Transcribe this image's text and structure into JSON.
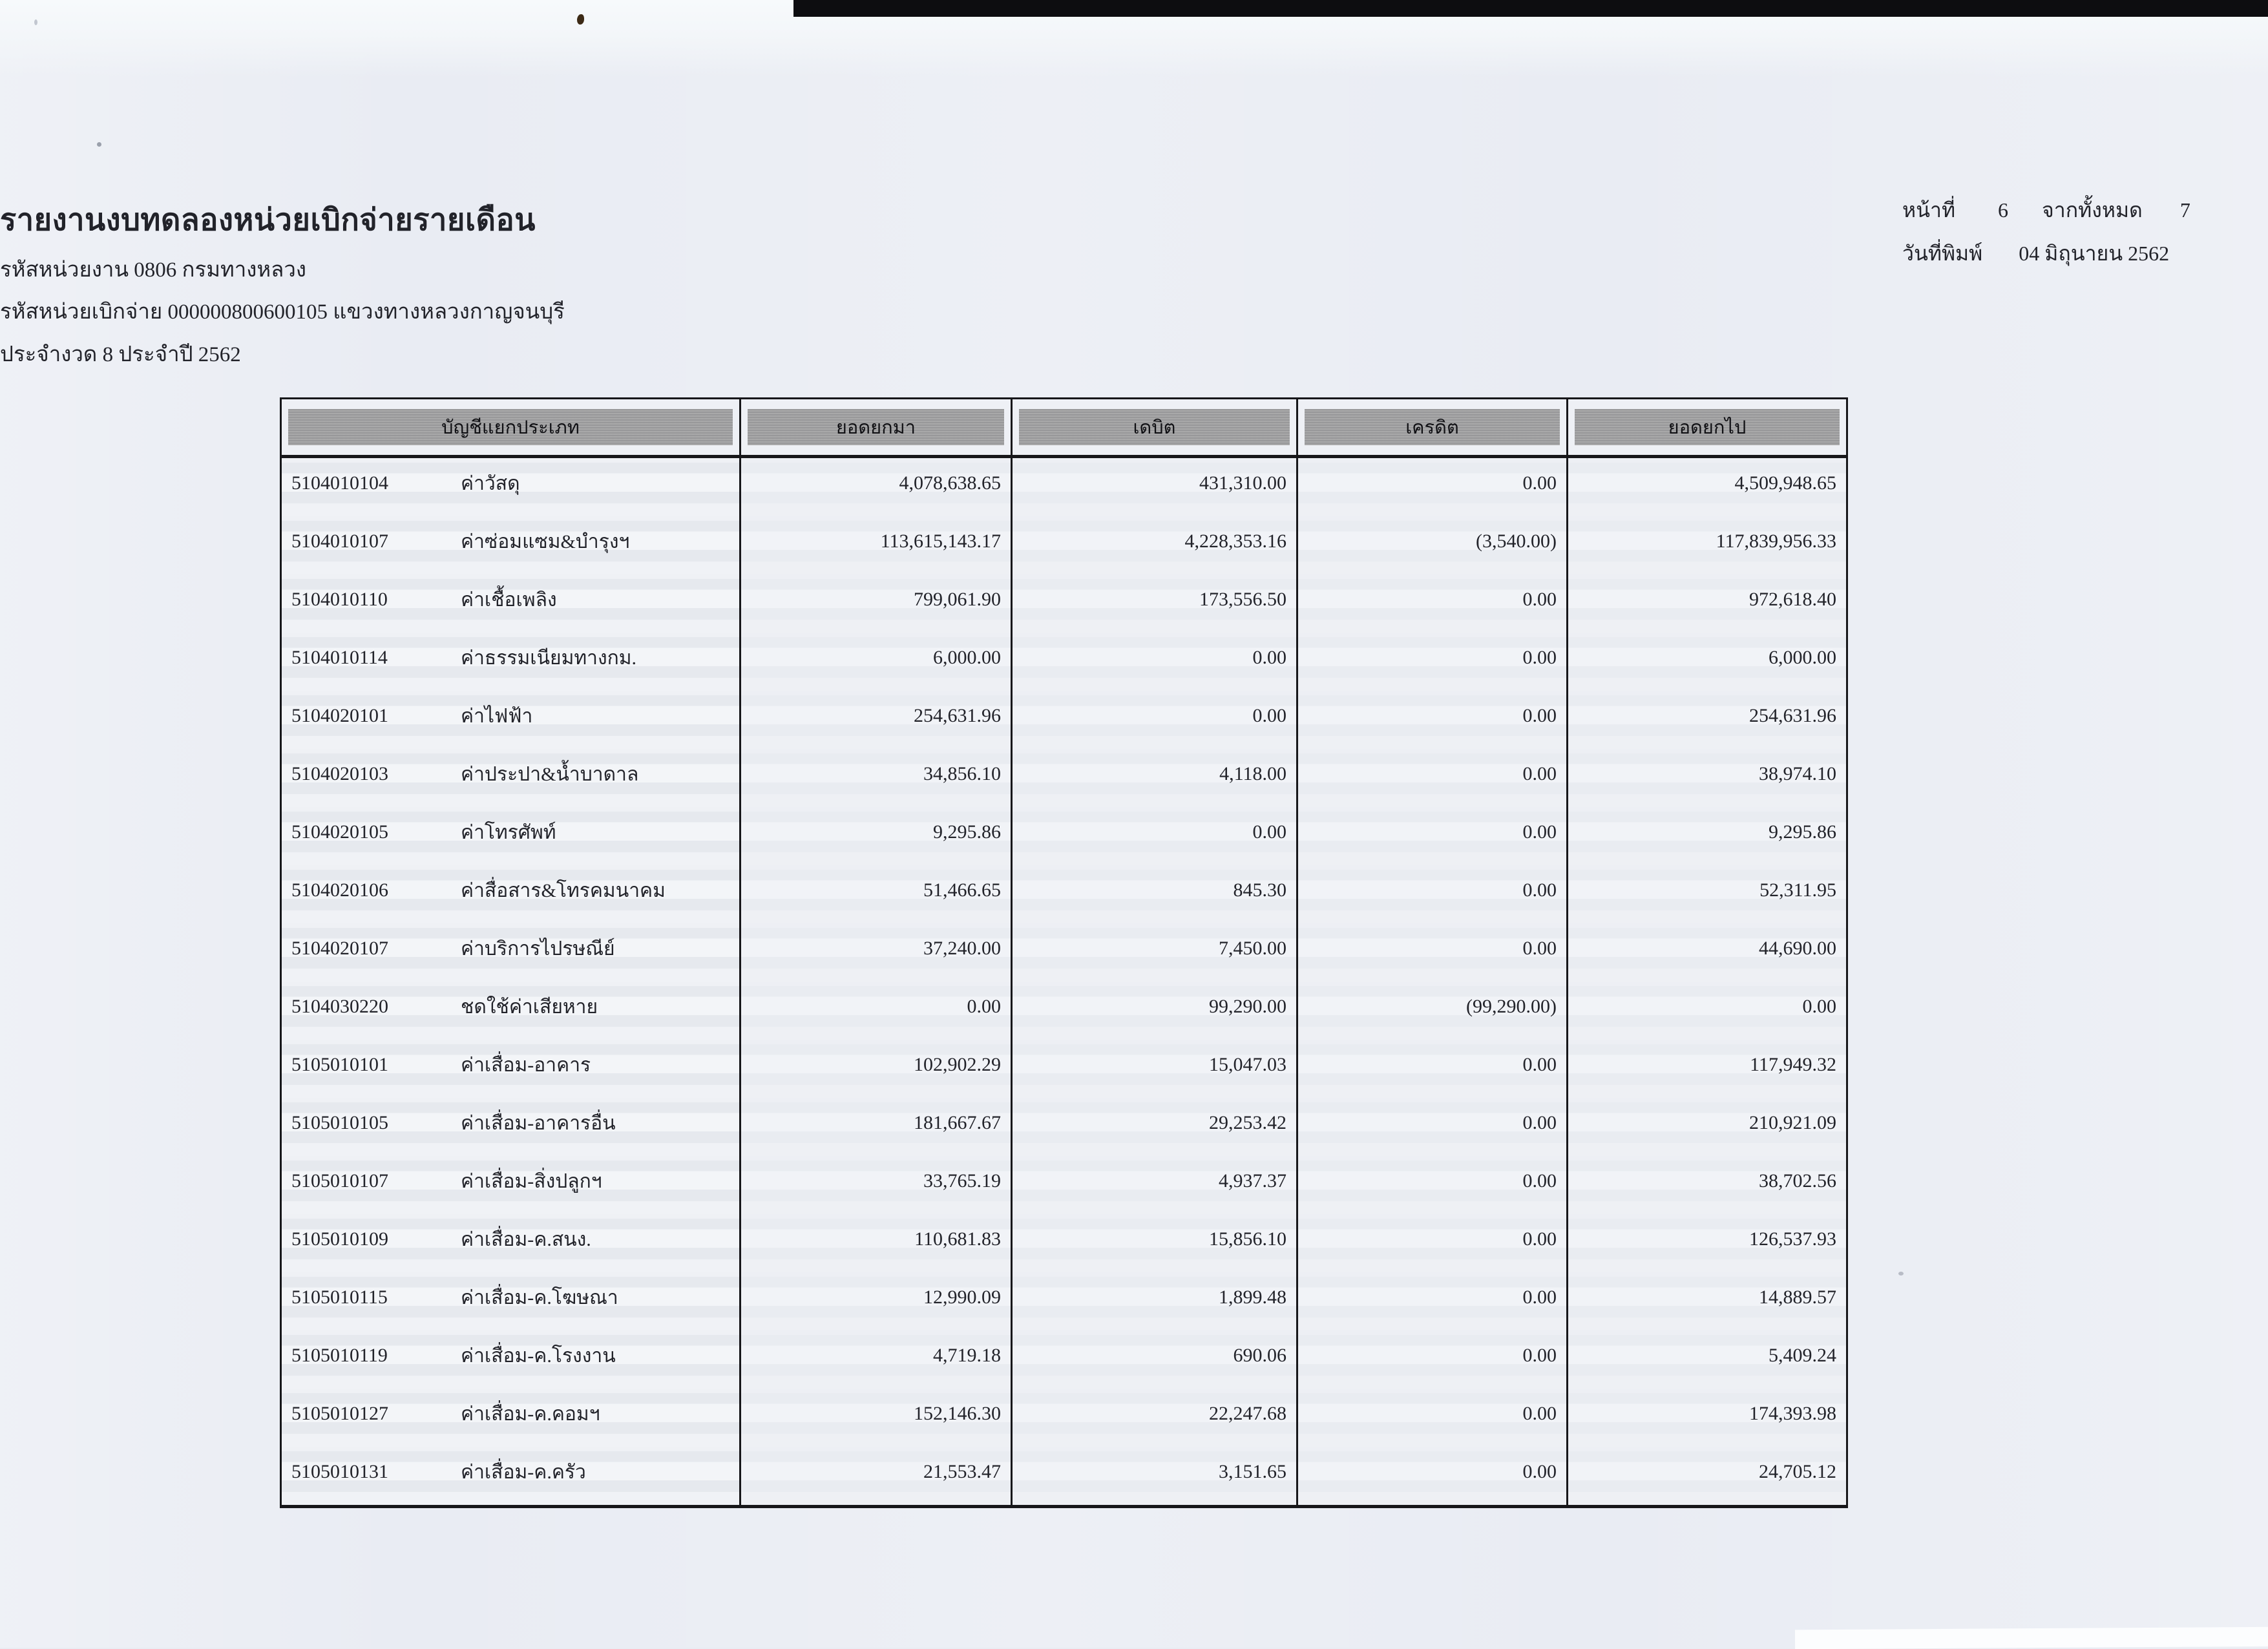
{
  "doc": {
    "title": "รายงานงบทดลองหน่วยเบิกจ่ายรายเดือน",
    "agency_line": "รหัสหน่วยงาน 0806 กรมทางหลวง",
    "disburse_line": "รหัสหน่วยเบิกจ่าย 000000800600105 แขวงทางหลวงกาญจนบุรี",
    "period_line": "ประจำงวด 8 ประจำปี 2562",
    "page_info": {
      "page_label": "หน้าที่",
      "page_number": "6",
      "total_label": "จากทั้งหมด",
      "total_pages": "7",
      "print_date_label": "วันที่พิมพ์",
      "print_date": "04 มิถุนายน 2562"
    }
  },
  "table": {
    "columns": [
      "บัญชีแยกประเภท",
      "ยอดยกมา",
      "เดบิต",
      "เครดิต",
      "ยอดยกไป"
    ],
    "rows": [
      {
        "code": "5104010104",
        "name": "ค่าวัสดุ",
        "opening": "4,078,638.65",
        "debit": "431,310.00",
        "credit": "0.00",
        "closing": "4,509,948.65"
      },
      {
        "code": "5104010107",
        "name": "ค่าซ่อมแซม&บำรุงฯ",
        "opening": "113,615,143.17",
        "debit": "4,228,353.16",
        "credit": "(3,540.00)",
        "closing": "117,839,956.33"
      },
      {
        "code": "5104010110",
        "name": "ค่าเชื้อเพลิง",
        "opening": "799,061.90",
        "debit": "173,556.50",
        "credit": "0.00",
        "closing": "972,618.40"
      },
      {
        "code": "5104010114",
        "name": "ค่าธรรมเนียมทางกม.",
        "opening": "6,000.00",
        "debit": "0.00",
        "credit": "0.00",
        "closing": "6,000.00"
      },
      {
        "code": "5104020101",
        "name": "ค่าไฟฟ้า",
        "opening": "254,631.96",
        "debit": "0.00",
        "credit": "0.00",
        "closing": "254,631.96"
      },
      {
        "code": "5104020103",
        "name": "ค่าประปา&น้ำบาดาล",
        "opening": "34,856.10",
        "debit": "4,118.00",
        "credit": "0.00",
        "closing": "38,974.10"
      },
      {
        "code": "5104020105",
        "name": "ค่าโทรศัพท์",
        "opening": "9,295.86",
        "debit": "0.00",
        "credit": "0.00",
        "closing": "9,295.86"
      },
      {
        "code": "5104020106",
        "name": "ค่าสื่อสาร&โทรคมนาคม",
        "opening": "51,466.65",
        "debit": "845.30",
        "credit": "0.00",
        "closing": "52,311.95"
      },
      {
        "code": "5104020107",
        "name": "ค่าบริการไปรษณีย์",
        "opening": "37,240.00",
        "debit": "7,450.00",
        "credit": "0.00",
        "closing": "44,690.00"
      },
      {
        "code": "5104030220",
        "name": "ชดใช้ค่าเสียหาย",
        "opening": "0.00",
        "debit": "99,290.00",
        "credit": "(99,290.00)",
        "closing": "0.00"
      },
      {
        "code": "5105010101",
        "name": "ค่าเสื่อม-อาคาร",
        "opening": "102,902.29",
        "debit": "15,047.03",
        "credit": "0.00",
        "closing": "117,949.32"
      },
      {
        "code": "5105010105",
        "name": "ค่าเสื่อม-อาคารอื่น",
        "opening": "181,667.67",
        "debit": "29,253.42",
        "credit": "0.00",
        "closing": "210,921.09"
      },
      {
        "code": "5105010107",
        "name": "ค่าเสื่อม-สิ่งปลูกฯ",
        "opening": "33,765.19",
        "debit": "4,937.37",
        "credit": "0.00",
        "closing": "38,702.56"
      },
      {
        "code": "5105010109",
        "name": "ค่าเสื่อม-ค.สนง.",
        "opening": "110,681.83",
        "debit": "15,856.10",
        "credit": "0.00",
        "closing": "126,537.93"
      },
      {
        "code": "5105010115",
        "name": "ค่าเสื่อม-ค.โฆษณา",
        "opening": "12,990.09",
        "debit": "1,899.48",
        "credit": "0.00",
        "closing": "14,889.57"
      },
      {
        "code": "5105010119",
        "name": "ค่าเสื่อม-ค.โรงงาน",
        "opening": "4,719.18",
        "debit": "690.06",
        "credit": "0.00",
        "closing": "5,409.24"
      },
      {
        "code": "5105010127",
        "name": "ค่าเสื่อม-ค.คอมฯ",
        "opening": "152,146.30",
        "debit": "22,247.68",
        "credit": "0.00",
        "closing": "174,393.98"
      },
      {
        "code": "5105010131",
        "name": "ค่าเสื่อม-ค.ครัว",
        "opening": "21,553.47",
        "debit": "3,151.65",
        "credit": "0.00",
        "closing": "24,705.12"
      }
    ]
  },
  "colors": {
    "paper": "#e9ecf3",
    "ink": "#22232a",
    "table_border": "#17171a",
    "header_fill": "#a2a2a3",
    "scan_bar": "#0d0d10"
  }
}
